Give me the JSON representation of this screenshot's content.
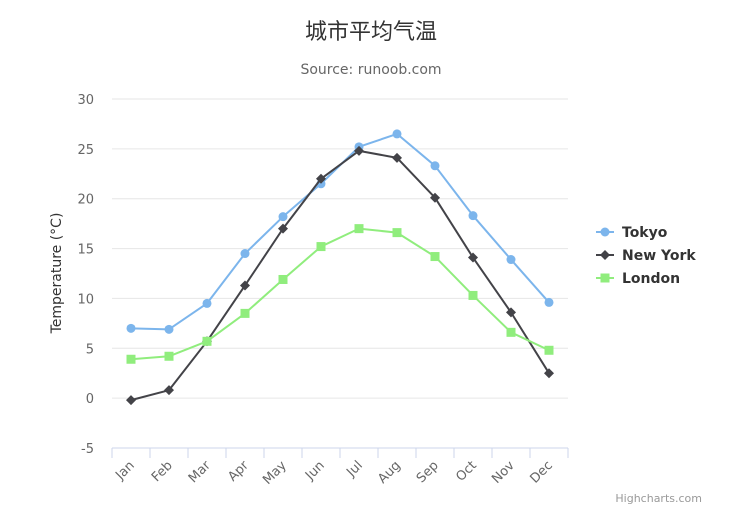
{
  "chart_data": {
    "type": "line",
    "title": "城市平均气温",
    "subtitle": "Source: runoob.com",
    "ylabel": "Temperature (°C)",
    "categories": [
      "Jan",
      "Feb",
      "Mar",
      "Apr",
      "May",
      "Jun",
      "Jul",
      "Aug",
      "Sep",
      "Oct",
      "Nov",
      "Dec"
    ],
    "ylim": [
      -5,
      30
    ],
    "yticks": [
      "-5",
      "0",
      "5",
      "10",
      "15",
      "20",
      "25",
      "30"
    ],
    "grid": true,
    "legend_position": "right",
    "series": [
      {
        "name": "Tokyo",
        "color": "#7cb5ec",
        "marker": "circle",
        "values": [
          7.0,
          6.9,
          9.5,
          14.5,
          18.2,
          21.5,
          25.2,
          26.5,
          23.3,
          18.3,
          13.9,
          9.6
        ]
      },
      {
        "name": "New York",
        "color": "#434348",
        "marker": "diamond",
        "values": [
          -0.2,
          0.8,
          5.7,
          11.3,
          17.0,
          22.0,
          24.8,
          24.1,
          20.1,
          14.1,
          8.6,
          2.5
        ]
      },
      {
        "name": "London",
        "color": "#90ed7d",
        "marker": "square",
        "values": [
          3.9,
          4.2,
          5.7,
          8.5,
          11.9,
          15.2,
          17.0,
          16.6,
          14.2,
          10.3,
          6.6,
          4.8
        ]
      }
    ]
  },
  "credits": "Highcharts.com"
}
